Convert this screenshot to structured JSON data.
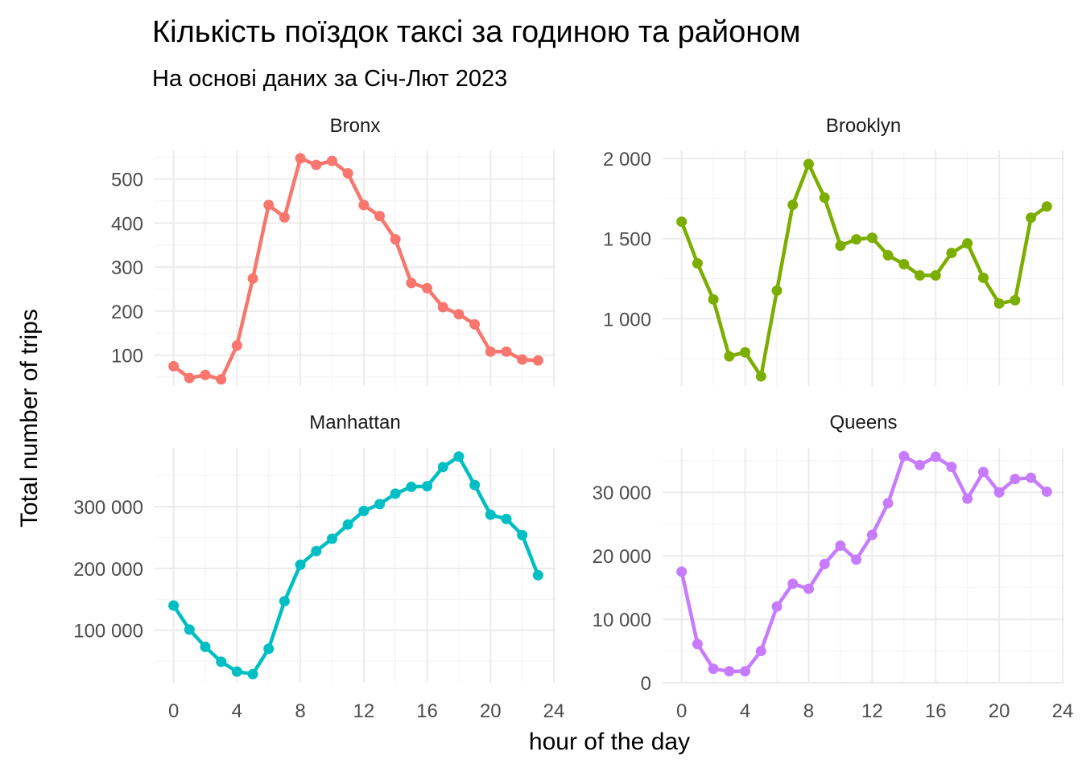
{
  "chart_data": {
    "type": "line",
    "title": "Кількість поїздок таксі за годиною та районом",
    "subtitle": "На основі даних за Січ-Лют 2023",
    "xlabel": "hour of the day",
    "ylabel": "Total number of trips",
    "x_ticks": [
      0,
      4,
      8,
      12,
      16,
      20,
      24
    ],
    "x_range": [
      -1.2,
      24.1
    ],
    "grid": true,
    "legend": "none",
    "panels": [
      {
        "name": "Bronx",
        "color": "#F8766D",
        "y_range": [
          30,
          565
        ],
        "y_ticks": [
          100,
          200,
          300,
          400,
          500
        ],
        "y_tick_labels": [
          "100",
          "200",
          "300",
          "400",
          "500"
        ],
        "x": [
          0,
          1,
          2,
          3,
          4,
          5,
          6,
          7,
          8,
          9,
          10,
          11,
          12,
          13,
          14,
          15,
          16,
          17,
          18,
          19,
          20,
          21,
          22,
          23
        ],
        "values": [
          75,
          48,
          55,
          45,
          122,
          274,
          441,
          413,
          547,
          532,
          541,
          513,
          441,
          416,
          363,
          264,
          252,
          209,
          193,
          170,
          108,
          108,
          90,
          88
        ]
      },
      {
        "name": "Brooklyn",
        "color": "#7CAE00",
        "y_range": [
          580,
          2050
        ],
        "y_ticks": [
          1000,
          1500,
          2000
        ],
        "y_tick_labels": [
          "1 000",
          "1 500",
          "2 000"
        ],
        "x": [
          0,
          1,
          2,
          3,
          4,
          5,
          6,
          7,
          8,
          9,
          10,
          11,
          12,
          13,
          14,
          15,
          16,
          17,
          18,
          19,
          20,
          21,
          22,
          23
        ],
        "values": [
          1605,
          1345,
          1120,
          765,
          790,
          640,
          1175,
          1710,
          1965,
          1755,
          1455,
          1495,
          1505,
          1395,
          1340,
          1270,
          1270,
          1410,
          1470,
          1255,
          1095,
          1115,
          1630,
          1700
        ]
      },
      {
        "name": "Manhattan",
        "color": "#00BFC4",
        "y_range": [
          15000,
          395000
        ],
        "y_ticks": [
          100000,
          200000,
          300000
        ],
        "y_tick_labels": [
          "100 000",
          "200 000",
          "300 000"
        ],
        "x": [
          0,
          1,
          2,
          3,
          4,
          5,
          6,
          7,
          8,
          9,
          10,
          11,
          12,
          13,
          14,
          15,
          16,
          17,
          18,
          19,
          20,
          21,
          22,
          23
        ],
        "values": [
          140000,
          101000,
          73000,
          49000,
          33000,
          29000,
          70000,
          147000,
          206000,
          228000,
          248000,
          271000,
          293000,
          304000,
          321000,
          332000,
          333000,
          364000,
          381000,
          335000,
          287000,
          280000,
          254000,
          189000
        ]
      },
      {
        "name": "Queens",
        "color": "#C77CFF",
        "y_range": [
          0,
          37000
        ],
        "y_ticks": [
          0,
          10000,
          20000,
          30000
        ],
        "y_tick_labels": [
          "0",
          "10 000",
          "20 000",
          "30 000"
        ],
        "x": [
          0,
          1,
          2,
          3,
          4,
          5,
          6,
          7,
          8,
          9,
          10,
          11,
          12,
          13,
          14,
          15,
          16,
          17,
          18,
          19,
          20,
          21,
          22,
          23
        ],
        "values": [
          17500,
          6100,
          2200,
          1800,
          1800,
          5000,
          12000,
          15600,
          14800,
          18700,
          21600,
          19400,
          23300,
          28300,
          35700,
          34300,
          35600,
          34000,
          29000,
          33200,
          30000,
          32100,
          32300,
          30100
        ]
      }
    ]
  }
}
